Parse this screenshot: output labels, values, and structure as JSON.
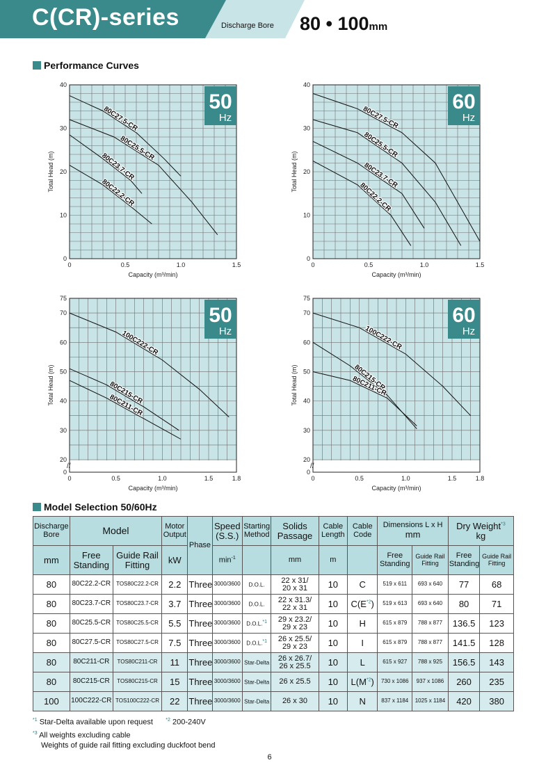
{
  "header": {
    "series_title": "C(CR)-series",
    "bore_label": "Discharge Bore",
    "bore_size": "80 • 100",
    "bore_unit": "mm",
    "colors": {
      "band": "#3a8a8c",
      "light": "#c9e4e6"
    }
  },
  "performance_section": {
    "title": "Performance Curves"
  },
  "chart_data": [
    {
      "type": "line",
      "badge_value": "50",
      "badge_unit": "Hz",
      "xlabel": "Capacity (m³/min)",
      "ylabel": "Total Head (m)",
      "xlim": [
        0,
        1.5
      ],
      "ylim": [
        0,
        40
      ],
      "xticks": [
        "0",
        "0.5",
        "1.0",
        "1.5"
      ],
      "yticks": [
        "0",
        "10",
        "20",
        "30",
        "40"
      ],
      "grid": true,
      "series": [
        {
          "name": "80C27.5-CR",
          "x": [
            0,
            0.3,
            0.6,
            0.85,
            1.0
          ],
          "y": [
            37.5,
            34,
            29,
            23,
            19
          ]
        },
        {
          "name": "80C25.5-CR",
          "x": [
            0,
            0.4,
            0.8,
            1.1,
            1.33
          ],
          "y": [
            32,
            28,
            21.5,
            13,
            5.5
          ]
        },
        {
          "name": "80C23.7-CR",
          "x": [
            0,
            0.3,
            0.55,
            0.65
          ],
          "y": [
            28.5,
            23,
            18,
            15
          ]
        },
        {
          "name": "80C22.2-CR",
          "x": [
            0,
            0.3,
            0.55,
            0.74
          ],
          "y": [
            21.5,
            17,
            12,
            8
          ]
        }
      ]
    },
    {
      "type": "line",
      "badge_value": "60",
      "badge_unit": "Hz",
      "xlabel": "Capacity (m³/min)",
      "ylabel": "Total Head (m)",
      "xlim": [
        0,
        1.5
      ],
      "ylim": [
        0,
        40
      ],
      "xticks": [
        "0",
        "0.5",
        "1.0",
        "1.5"
      ],
      "yticks": [
        "0",
        "10",
        "20",
        "30",
        "40"
      ],
      "grid": true,
      "series": [
        {
          "name": "80C27.5-CR",
          "x": [
            0,
            0.4,
            0.8,
            1.1,
            1.5
          ],
          "y": [
            38,
            34.5,
            29,
            22,
            4
          ]
        },
        {
          "name": "80C25.5-CR",
          "x": [
            0,
            0.4,
            0.8,
            1.1,
            1.33
          ],
          "y": [
            32,
            29,
            22,
            13,
            3
          ]
        },
        {
          "name": "80C23.7-CR",
          "x": [
            0,
            0.4,
            0.8,
            1.0
          ],
          "y": [
            27,
            22,
            15,
            7
          ]
        },
        {
          "name": "80C22.2-CR",
          "x": [
            0,
            0.4,
            0.7,
            0.88
          ],
          "y": [
            22.5,
            17,
            10,
            3
          ]
        }
      ]
    },
    {
      "type": "line",
      "badge_value": "50",
      "badge_unit": "Hz",
      "xlabel": "Capacity (m³/min)",
      "ylabel": "Total Head (m)",
      "xlim": [
        0,
        1.8
      ],
      "ylim": [
        0,
        75
      ],
      "xticks": [
        "0",
        "0.5",
        "1.0",
        "1.5",
        "1.8"
      ],
      "yticks": [
        "0",
        "20",
        "30",
        "40",
        "50",
        "60",
        "70",
        "75"
      ],
      "grid": true,
      "series": [
        {
          "name": "100C222-CR",
          "x": [
            0,
            0.5,
            1.0,
            1.4,
            1.72
          ],
          "y": [
            70,
            63.5,
            54,
            44,
            34.5
          ]
        },
        {
          "name": "80C215-CR",
          "x": [
            0,
            0.4,
            0.8,
            1.18
          ],
          "y": [
            51,
            45.5,
            38,
            30
          ]
        },
        {
          "name": "80C211-CR",
          "x": [
            0,
            0.4,
            0.8,
            1.2
          ],
          "y": [
            47,
            41,
            34,
            27
          ]
        }
      ]
    },
    {
      "type": "line",
      "badge_value": "60",
      "badge_unit": "Hz",
      "xlabel": "Capacity (m³/min)",
      "ylabel": "Total Head (m)",
      "xlim": [
        0,
        1.8
      ],
      "ylim": [
        0,
        75
      ],
      "xticks": [
        "0",
        "0.5",
        "1.0",
        "1.5",
        "1.8"
      ],
      "yticks": [
        "0",
        "20",
        "30",
        "40",
        "50",
        "60",
        "70",
        "75"
      ],
      "grid": true,
      "series": [
        {
          "name": "100C222-CR",
          "x": [
            0,
            0.5,
            1.0,
            1.4,
            1.7
          ],
          "y": [
            70,
            65,
            56,
            45,
            35
          ]
        },
        {
          "name": "80C215-CR",
          "x": [
            0,
            0.4,
            0.8,
            1.12
          ],
          "y": [
            60,
            52,
            42,
            30.5
          ]
        },
        {
          "name": "80C211-CR",
          "x": [
            0,
            0.4,
            0.8,
            1.12
          ],
          "y": [
            50,
            47,
            41,
            31.5
          ]
        }
      ]
    }
  ],
  "selection_section": {
    "title": "Model Selection 50/60Hz"
  },
  "table": {
    "h": {
      "bore": "Discharge Bore",
      "model": "Model",
      "motor": "Motor Output",
      "phase": "Phase",
      "speed": "Speed (S.S.)",
      "starting": "Starting Method",
      "solids": "Solids Passage",
      "cable_len": "Cable Length",
      "cable_code": "Cable Code",
      "dims": "Dimensions  L x H",
      "dims_unit": "mm",
      "weight": "Dry Weight",
      "weight_mark": "*3",
      "weight_unit": "kg",
      "bore_unit": "mm",
      "free": "Free Standing",
      "guide": "Guide Rail Fitting",
      "kw": "kW",
      "speed_unit": "min",
      "speed_exp": "-1",
      "solids_unit": "mm",
      "cable_unit": "m",
      "dim_free": "Free Standing",
      "dim_guide": "Guide Rail Fitting",
      "w_free": "Free Standing",
      "w_guide": "Guide Rail Fitting"
    },
    "rows": [
      {
        "bore": "80",
        "free": "80C22.2-CR",
        "guide": "TOS80C22.2-CR",
        "kw": "2.2",
        "phase": "Three",
        "speed": "3000/3600",
        "start": "D.O.L.",
        "start_mark": "",
        "solids": "22 x 31/\n20 x 31",
        "cable": "10",
        "code": "C",
        "code_mark": "",
        "code_end": "",
        "dim_free": "519 x 611",
        "dim_guide": "693 x 640",
        "w_free": "77",
        "w_guide": "68"
      },
      {
        "bore": "80",
        "free": "80C23.7-CR",
        "guide": "TOS80C23.7-CR",
        "kw": "3.7",
        "phase": "Three",
        "speed": "3000/3600",
        "start": "D.O.L.",
        "start_mark": "",
        "solids": "22 x 31.3/\n22 x 31",
        "cable": "10",
        "code": "C(E",
        "code_mark": "*2",
        "code_end": ")",
        "dim_free": "519 x 613",
        "dim_guide": "693 x 640",
        "w_free": "80",
        "w_guide": "71"
      },
      {
        "bore": "80",
        "free": "80C25.5-CR",
        "guide": "TOS80C25.5-CR",
        "kw": "5.5",
        "phase": "Three",
        "speed": "3000/3600",
        "start": "D.O.L.",
        "start_mark": "*1",
        "solids": "29 x 23.2/\n29 x 23",
        "cable": "10",
        "code": "H",
        "code_mark": "",
        "code_end": "",
        "dim_free": "615 x 879",
        "dim_guide": "788 x 877",
        "w_free": "136.5",
        "w_guide": "123"
      },
      {
        "bore": "80",
        "free": "80C27.5-CR",
        "guide": "TOS80C27.5-CR",
        "kw": "7.5",
        "phase": "Three",
        "speed": "3000/3600",
        "start": "D.O.L.",
        "start_mark": "*1",
        "solids": "26 x 25.5/\n29 x 23",
        "cable": "10",
        "code": "I",
        "code_mark": "",
        "code_end": "",
        "dim_free": "615 x 879",
        "dim_guide": "788 x 877",
        "w_free": "141.5",
        "w_guide": "128"
      },
      {
        "bore": "80",
        "free": "80C211-CR",
        "guide": "TOS80C211-CR",
        "kw": "11",
        "phase": "Three",
        "speed": "3000/3600",
        "start": "Star-Delta",
        "start_mark": "",
        "solids": "26 x 26.7/\n26 x 25.5",
        "cable": "10",
        "code": "L",
        "code_mark": "",
        "code_end": "",
        "dim_free": "615 x 927",
        "dim_guide": "788 x 925",
        "w_free": "156.5",
        "w_guide": "143"
      },
      {
        "bore": "80",
        "free": "80C215-CR",
        "guide": "TOS80C215-CR",
        "kw": "15",
        "phase": "Three",
        "speed": "3000/3600",
        "start": "Star-Delta",
        "start_mark": "",
        "solids": "26 x 25.5",
        "cable": "10",
        "code": "L(M",
        "code_mark": "*2",
        "code_end": ")",
        "dim_free": "730 x 1086",
        "dim_guide": "937 x 1086",
        "w_free": "260",
        "w_guide": "235"
      },
      {
        "bore": "100",
        "free": "100C222-CR",
        "guide": "TOS100C222-CR",
        "kw": "22",
        "phase": "Three",
        "speed": "3000/3600",
        "start": "Star-Delta",
        "start_mark": "",
        "solids": "26 x 30",
        "cable": "10",
        "code": "N",
        "code_mark": "",
        "code_end": "",
        "dim_free": "837 x 1184",
        "dim_guide": "1025 x 1184",
        "w_free": "420",
        "w_guide": "380"
      }
    ]
  },
  "notes": {
    "n1_mark": "*1",
    "n1": "Star-Delta available upon request",
    "n2_mark": "*2",
    "n2": "200-240V",
    "n3_mark": "*3",
    "n3": "All weights excluding cable",
    "n4": "Weights of guide rail fitting excluding duckfoot bend"
  },
  "page_number": "6"
}
